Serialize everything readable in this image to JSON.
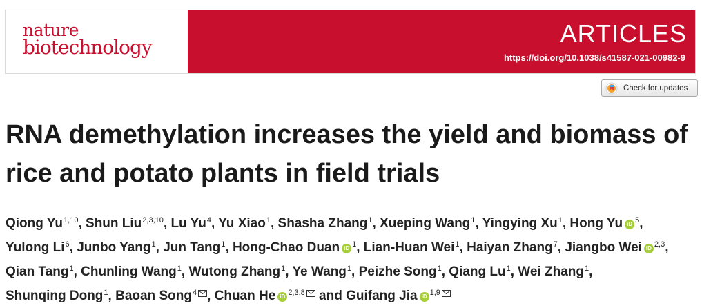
{
  "journal": {
    "name_line1": "nature",
    "name_line2": "biotechnology"
  },
  "header": {
    "section_label": "ARTICLES",
    "doi_text": "https://doi.org/10.1038/s41587-021-00982-9",
    "band_color": "#c8102e"
  },
  "check_updates": {
    "label": "Check for updates"
  },
  "article": {
    "title": "RNA demethylation increases the yield and biomass of rice and potato plants in field trials",
    "authors": [
      {
        "name": "Qiong Yu",
        "aff": "1,10"
      },
      {
        "name": "Shun Liu",
        "aff": "2,3,10"
      },
      {
        "name": "Lu Yu",
        "aff": "4"
      },
      {
        "name": "Yu Xiao",
        "aff": "1"
      },
      {
        "name": "Shasha Zhang",
        "aff": "1"
      },
      {
        "name": "Xueping Wang",
        "aff": "1"
      },
      {
        "name": "Yingying Xu",
        "aff": "1"
      },
      {
        "name": "Hong Yu",
        "aff": "5",
        "orcid": true
      },
      {
        "name": "Yulong Li",
        "aff": "6"
      },
      {
        "name": "Junbo Yang",
        "aff": "1"
      },
      {
        "name": "Jun Tang",
        "aff": "1"
      },
      {
        "name": "Hong-Chao Duan",
        "aff": "1",
        "orcid": true
      },
      {
        "name": "Lian-Huan Wei",
        "aff": "1"
      },
      {
        "name": "Haiyan Zhang",
        "aff": "7"
      },
      {
        "name": "Jiangbo Wei",
        "aff": "2,3",
        "orcid": true
      },
      {
        "name": "Qian Tang",
        "aff": "1"
      },
      {
        "name": "Chunling Wang",
        "aff": "1"
      },
      {
        "name": "Wutong Zhang",
        "aff": "1"
      },
      {
        "name": "Ye Wang",
        "aff": "1"
      },
      {
        "name": "Peizhe Song",
        "aff": "1"
      },
      {
        "name": "Qiang Lu",
        "aff": "1"
      },
      {
        "name": "Wei Zhang",
        "aff": "1"
      },
      {
        "name": "Shunqing Dong",
        "aff": "1"
      },
      {
        "name": "Baoan Song",
        "aff": "4",
        "mail": true
      },
      {
        "name": "Chuan He",
        "aff": "2,3,8",
        "orcid": true,
        "mail": true
      },
      {
        "name": "Guifang Jia",
        "aff": "1,9",
        "orcid": true,
        "mail": true
      }
    ],
    "author_separator": ", ",
    "last_author_joiner": " and "
  }
}
